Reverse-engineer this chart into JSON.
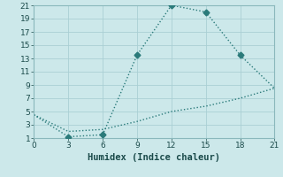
{
  "line1_x": [
    0,
    3,
    6,
    9,
    12,
    15,
    18,
    21
  ],
  "line1_y": [
    4.5,
    1.2,
    1.5,
    13.5,
    21.0,
    20.0,
    13.5,
    8.5
  ],
  "line1_marker_x": [
    3,
    6,
    9,
    12,
    15,
    18
  ],
  "line1_marker_y": [
    1.2,
    1.5,
    13.5,
    21.0,
    20.0,
    13.5
  ],
  "line2_x": [
    0,
    3,
    6,
    9,
    12,
    15,
    18,
    21
  ],
  "line2_y": [
    4.5,
    2.0,
    2.3,
    3.5,
    5.0,
    5.8,
    7.0,
    8.5
  ],
  "line_color": "#2a7a7a",
  "bg_color": "#cce8ea",
  "grid_color": "#aacfd4",
  "xlabel": "Humidex (Indice chaleur)",
  "xlim": [
    0,
    21
  ],
  "ylim": [
    1,
    21
  ],
  "xticks": [
    0,
    3,
    6,
    9,
    12,
    15,
    18,
    21
  ],
  "yticks": [
    1,
    3,
    5,
    7,
    9,
    11,
    13,
    15,
    17,
    19,
    21
  ],
  "xlabel_fontsize": 7.5,
  "tick_fontsize": 6.5,
  "line_width": 1.0,
  "marker_size": 3.5
}
